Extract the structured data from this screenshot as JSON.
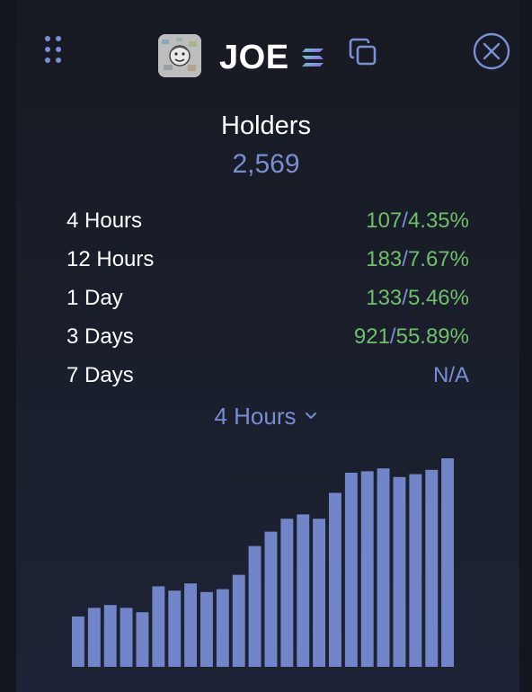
{
  "header": {
    "token_name": "JOE",
    "icons": [
      "drag-handle-icon",
      "token-avatar",
      "solana-icon",
      "copy-icon",
      "close-icon"
    ]
  },
  "holders": {
    "label": "Holders",
    "value": "2,569"
  },
  "stats": [
    {
      "period": "4 Hours",
      "count": "107",
      "sep": "/",
      "pct": "4.35%"
    },
    {
      "period": "12 Hours",
      "count": "183",
      "sep": "/",
      "pct": "7.67%"
    },
    {
      "period": "1 Day",
      "count": "133",
      "sep": "/",
      "pct": "5.46%"
    },
    {
      "period": "3 Days",
      "count": "921",
      "sep": "/",
      "pct": "55.89%"
    },
    {
      "period": "7 Days",
      "na": "N/A"
    }
  ],
  "period_select": {
    "value": "4 Hours"
  },
  "colors": {
    "accent": "#7a8cd4",
    "positive": "#6fbf6a",
    "bar": "#7385c9",
    "background": "#171a22"
  },
  "chart_data": {
    "type": "bar",
    "values": [
      2465,
      2471,
      2473,
      2471,
      2468,
      2486,
      2483,
      2488,
      2482,
      2484,
      2494,
      2514,
      2524,
      2533,
      2536,
      2533,
      2551,
      2565,
      2566,
      2568,
      2562,
      2564,
      2567,
      2575
    ],
    "ylim": [
      2430,
      2580
    ]
  }
}
